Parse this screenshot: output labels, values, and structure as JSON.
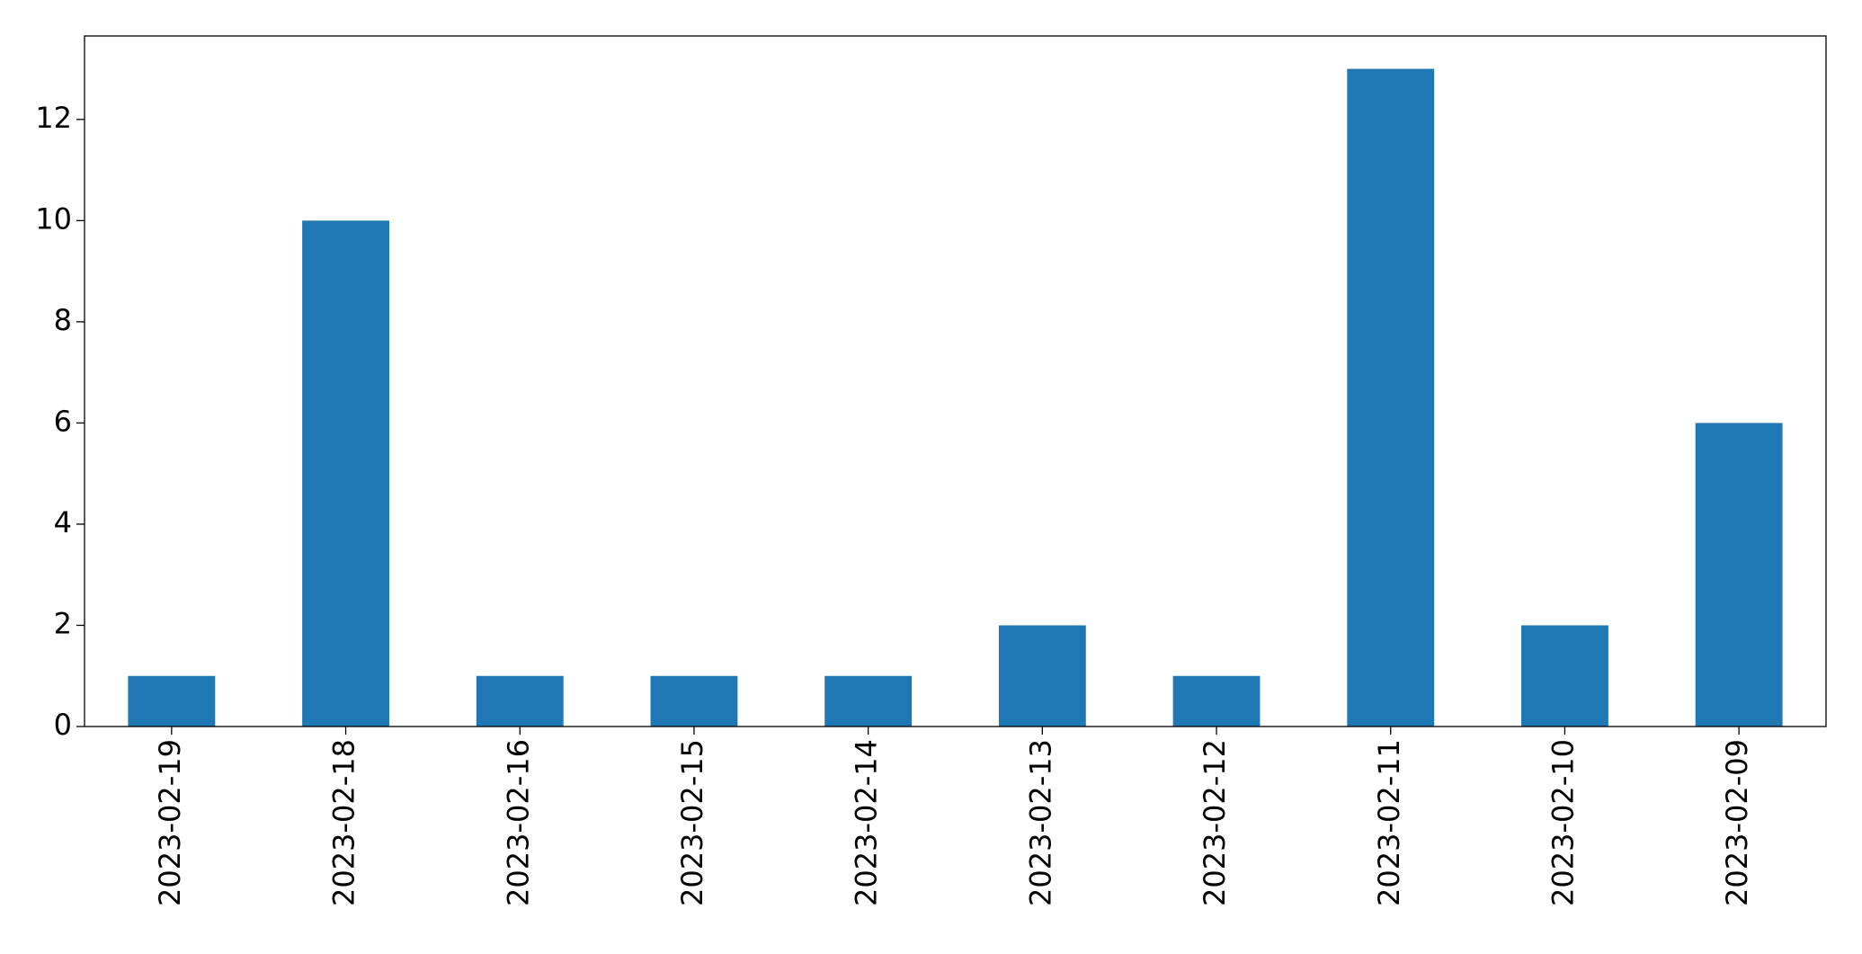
{
  "chart_data": {
    "type": "bar",
    "categories": [
      "2023-02-19",
      "2023-02-18",
      "2023-02-16",
      "2023-02-15",
      "2023-02-14",
      "2023-02-13",
      "2023-02-12",
      "2023-02-11",
      "2023-02-10",
      "2023-02-09"
    ],
    "values": [
      1,
      10,
      1,
      1,
      1,
      2,
      1,
      13,
      2,
      6
    ],
    "color": "#1f77b4",
    "ylim": [
      0,
      13.65
    ],
    "yticks": [
      0,
      2,
      4,
      6,
      8,
      10,
      12
    ],
    "grid": false
  }
}
